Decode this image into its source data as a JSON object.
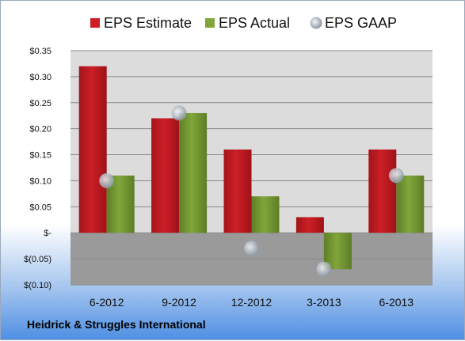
{
  "footer": {
    "company": "Heidrick & Struggles International"
  },
  "colors": {
    "estimate": "#cc1f26",
    "actual": "#80a63a",
    "gaap": "#c4ccd6",
    "plot_above": "#dcdcdc",
    "plot_below": "#9a9a9a"
  },
  "chart_data": {
    "type": "bar",
    "categories": [
      "6-2012",
      "9-2012",
      "12-2012",
      "3-2013",
      "6-2013"
    ],
    "series": [
      {
        "name": "EPS Estimate",
        "kind": "bar",
        "values": [
          0.32,
          0.22,
          0.16,
          0.03,
          0.16
        ]
      },
      {
        "name": "EPS Actual",
        "kind": "bar",
        "values": [
          0.11,
          0.23,
          0.07,
          -0.07,
          0.11
        ]
      },
      {
        "name": "EPS GAAP",
        "kind": "marker",
        "values": [
          0.1,
          0.23,
          -0.03,
          -0.07,
          0.11
        ]
      }
    ],
    "yticks": [
      {
        "value": 0.35,
        "label": "$0.35"
      },
      {
        "value": 0.3,
        "label": "$0.30"
      },
      {
        "value": 0.25,
        "label": "$0.25"
      },
      {
        "value": 0.2,
        "label": "$0.20"
      },
      {
        "value": 0.15,
        "label": "$0.15"
      },
      {
        "value": 0.1,
        "label": "$0.10"
      },
      {
        "value": 0.05,
        "label": "$0.05"
      },
      {
        "value": 0.0,
        "label": "$-"
      },
      {
        "value": -0.05,
        "label": "$(0.05)"
      },
      {
        "value": -0.1,
        "label": "$(0.10)"
      }
    ],
    "ylim": [
      -0.1,
      0.35
    ],
    "grid": true,
    "legend_position": "top"
  }
}
